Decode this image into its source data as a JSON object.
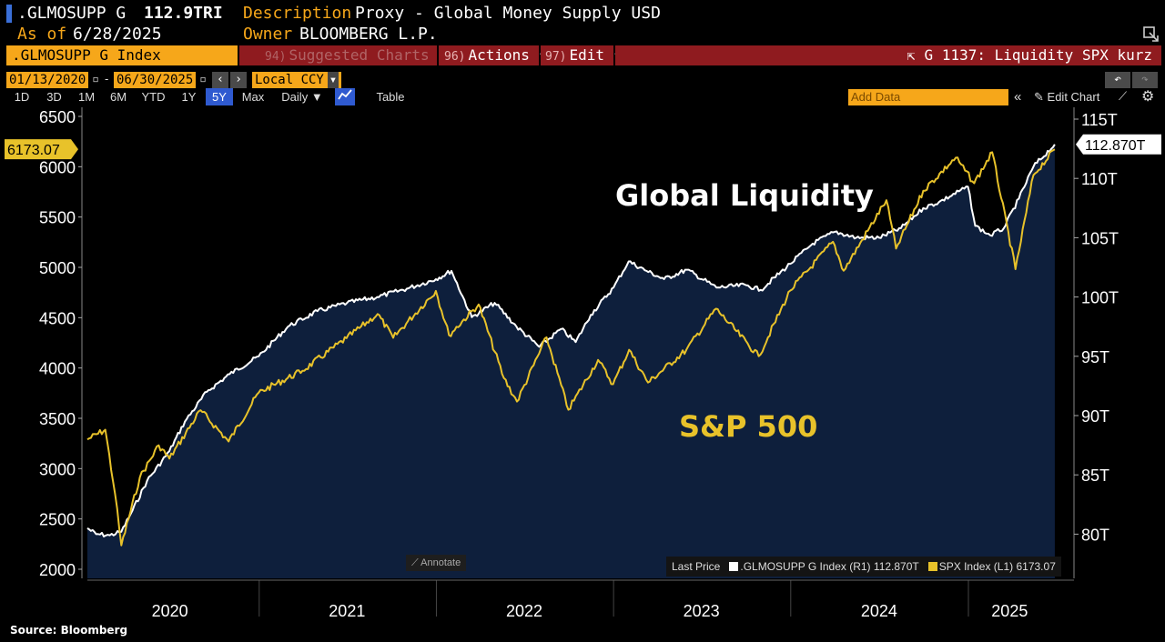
{
  "header": {
    "ticker": ".GLMOSUPP G",
    "last_value": "112.9TRI",
    "description_label": "Description",
    "description": "Proxy - Global Money Supply USD",
    "asof_label": "As of",
    "asof_date": "6/28/2025",
    "owner_label": "Owner",
    "owner": "BLOOMBERG L.P."
  },
  "toolbar": {
    "security": ".GLMOSUPP G Index",
    "suggested_num": "94)",
    "suggested_label": "Suggested Charts",
    "actions_num": "96)",
    "actions_label": "Actions",
    "edit_num": "97)",
    "edit_label": "Edit",
    "chart_name": "G 1137: Liquidity SPX kurz"
  },
  "controls": {
    "start_date": "01/13/2020",
    "dash": "-",
    "end_date": "06/30/2025",
    "currency": "Local CCY",
    "ranges": [
      "1D",
      "3D",
      "1M",
      "6M",
      "YTD",
      "1Y",
      "5Y",
      "Max"
    ],
    "selected_range": "5Y",
    "frequency": "Daily",
    "table_label": "Table",
    "add_data_placeholder": "Add Data",
    "edit_chart_label": "Edit Chart"
  },
  "colors": {
    "liquidity": "#ffffff",
    "spx": "#e8c22a",
    "area": "#0e1f3c",
    "accent": "#f6a71a",
    "panel_red": "#8f1b1f"
  },
  "chart_data": {
    "type": "line",
    "annotations": [
      "Global Liquidity",
      "S&P 500"
    ],
    "x_ticks": [
      "2020",
      "2021",
      "2022",
      "2023",
      "2024",
      "2025"
    ],
    "left_axis": {
      "ticks": [
        6500,
        6000,
        5500,
        5000,
        4500,
        4000,
        3500,
        3000,
        2500,
        2000
      ],
      "range": [
        2000,
        6500
      ]
    },
    "right_axis": {
      "ticks": [
        "115T",
        "110T",
        "105T",
        "100T",
        "95T",
        "90T",
        "85T",
        "80T"
      ],
      "values": [
        115,
        110,
        105,
        100,
        95,
        90,
        85,
        80
      ],
      "range": [
        76.5,
        116.5
      ]
    },
    "last_labels": {
      "left": "6173.07",
      "right": "112.870T"
    },
    "series": [
      {
        "name": ".GLMOSUPP G Index",
        "axis": "right",
        "x": [
          "2020-01-13",
          "2020-01-31",
          "2020-02-28",
          "2020-03-23",
          "2020-04-15",
          "2020-05-15",
          "2020-06-30",
          "2020-08-01",
          "2020-09-15",
          "2020-11-01",
          "2020-12-31",
          "2021-03-01",
          "2021-05-01",
          "2021-07-01",
          "2021-09-01",
          "2021-11-01",
          "2021-12-31",
          "2022-02-01",
          "2022-03-15",
          "2022-05-01",
          "2022-06-15",
          "2022-08-01",
          "2022-09-15",
          "2022-10-15",
          "2022-11-15",
          "2023-01-01",
          "2023-02-01",
          "2023-03-10",
          "2023-04-15",
          "2023-06-01",
          "2023-08-01",
          "2023-10-01",
          "2023-10-31",
          "2023-12-31",
          "2024-02-15",
          "2024-04-01",
          "2024-05-15",
          "2024-07-01",
          "2024-08-15",
          "2024-09-30",
          "2024-11-01",
          "2024-12-31",
          "2025-01-15",
          "2025-02-15",
          "2025-03-15",
          "2025-04-15",
          "2025-05-15",
          "2025-06-28"
        ],
        "values": [
          80.5,
          80.0,
          79.9,
          80.2,
          82.0,
          84.5,
          87.0,
          89.5,
          92.0,
          93.5,
          95.0,
          97.5,
          98.8,
          99.5,
          100.0,
          100.7,
          101.5,
          102.2,
          98.3,
          99.5,
          97.5,
          95.8,
          97.3,
          96.2,
          98.5,
          100.8,
          103.0,
          102.2,
          101.5,
          102.3,
          100.8,
          101.0,
          100.6,
          102.8,
          104.5,
          105.5,
          105.0,
          105.0,
          105.8,
          107.5,
          108.0,
          109.3,
          106.0,
          105.2,
          105.8,
          108.3,
          111.0,
          112.87
        ]
      },
      {
        "name": "SPX Index",
        "axis": "left",
        "x": [
          "2020-01-13",
          "2020-02-19",
          "2020-03-10",
          "2020-03-23",
          "2020-04-30",
          "2020-06-08",
          "2020-06-30",
          "2020-09-02",
          "2020-10-30",
          "2020-12-31",
          "2021-03-31",
          "2021-06-30",
          "2021-09-02",
          "2021-10-04",
          "2021-12-31",
          "2022-01-27",
          "2022-03-29",
          "2022-05-20",
          "2022-06-16",
          "2022-08-16",
          "2022-09-30",
          "2022-11-30",
          "2022-12-31",
          "2023-02-02",
          "2023-03-13",
          "2023-05-31",
          "2023-07-31",
          "2023-10-27",
          "2023-12-31",
          "2024-03-28",
          "2024-04-19",
          "2024-07-16",
          "2024-08-05",
          "2024-09-30",
          "2024-12-06",
          "2025-01-13",
          "2025-02-19",
          "2025-04-08",
          "2025-05-15",
          "2025-06-28"
        ],
        "values": [
          3290,
          3386,
          2750,
          2237,
          2912,
          3232,
          3100,
          3580,
          3270,
          3756,
          3972,
          4297,
          4536,
          4300,
          4766,
          4326,
          4631,
          3900,
          3666,
          4305,
          3585,
          4080,
          3839,
          4180,
          3855,
          4180,
          4589,
          4117,
          4770,
          5254,
          4967,
          5667,
          5186,
          5762,
          6090,
          5836,
          6144,
          4982,
          5917,
          6173.07
        ]
      }
    ],
    "legend": {
      "title": "Last Price",
      "items": [
        {
          "name": ".GLMOSUPP G Index",
          "axis": "(R1)",
          "value": "112.870T"
        },
        {
          "name": "SPX Index",
          "axis": "(L1)",
          "value": "6173.07"
        }
      ]
    },
    "source": "Source: Bloomberg"
  },
  "annotate_label": "Annotate"
}
